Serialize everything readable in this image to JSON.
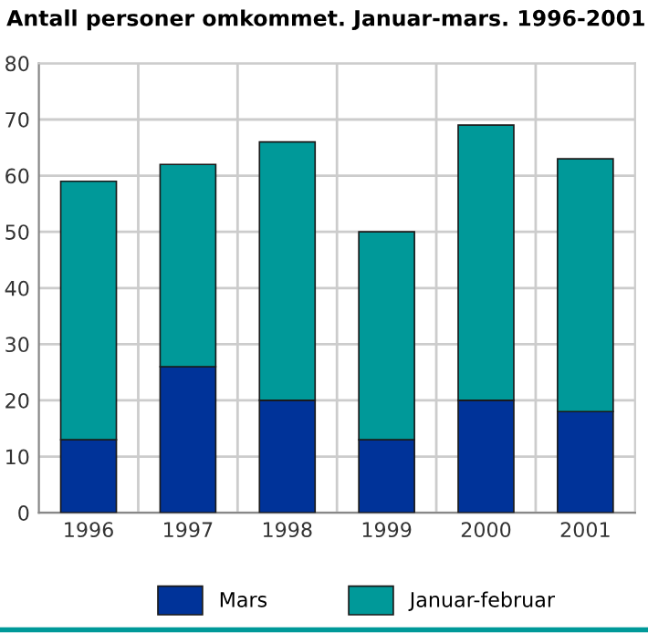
{
  "chart_data": {
    "type": "bar",
    "title": "Antall personer omkommet. Januar-mars. 1996-2001",
    "categories": [
      "1996",
      "1997",
      "1998",
      "1999",
      "2000",
      "2001"
    ],
    "stacked": true,
    "series": [
      {
        "name": "Mars",
        "color": "#003399",
        "values": [
          13,
          26,
          20,
          13,
          20,
          18
        ]
      },
      {
        "name": "Januar-februar",
        "color": "#009999",
        "values": [
          46,
          36,
          46,
          37,
          49,
          45
        ]
      }
    ],
    "ylim": [
      0,
      80
    ],
    "yticks": [
      0,
      10,
      20,
      30,
      40,
      50,
      60,
      70,
      80
    ],
    "grid": true,
    "legend": "bottom"
  }
}
